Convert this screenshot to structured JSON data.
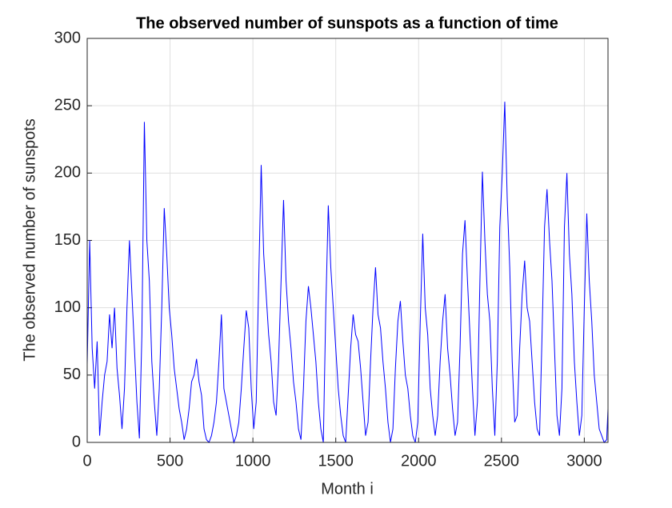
{
  "chart_data": {
    "type": "line",
    "title": "The observed number of sunspots as a function of time",
    "x_label": "Month i",
    "y_label": "The observed number of sunspots",
    "x": [
      0,
      15,
      30,
      45,
      60,
      75,
      90,
      105,
      120,
      135,
      150,
      165,
      180,
      195,
      210,
      225,
      240,
      255,
      270,
      285,
      300,
      315,
      330,
      345,
      360,
      375,
      390,
      405,
      420,
      435,
      450,
      465,
      480,
      495,
      510,
      525,
      540,
      555,
      570,
      585,
      600,
      615,
      630,
      645,
      660,
      675,
      690,
      705,
      720,
      735,
      750,
      765,
      780,
      795,
      810,
      825,
      840,
      855,
      870,
      885,
      900,
      915,
      930,
      945,
      960,
      975,
      990,
      1005,
      1020,
      1035,
      1050,
      1065,
      1080,
      1095,
      1110,
      1125,
      1140,
      1155,
      1170,
      1185,
      1200,
      1215,
      1230,
      1245,
      1260,
      1275,
      1290,
      1305,
      1320,
      1335,
      1350,
      1365,
      1380,
      1395,
      1410,
      1425,
      1440,
      1455,
      1470,
      1485,
      1500,
      1515,
      1530,
      1545,
      1560,
      1575,
      1590,
      1605,
      1620,
      1635,
      1650,
      1665,
      1680,
      1695,
      1710,
      1725,
      1740,
      1755,
      1770,
      1785,
      1800,
      1815,
      1830,
      1845,
      1860,
      1875,
      1890,
      1905,
      1920,
      1935,
      1950,
      1965,
      1980,
      1995,
      2010,
      2025,
      2040,
      2055,
      2070,
      2085,
      2100,
      2115,
      2130,
      2145,
      2160,
      2175,
      2190,
      2205,
      2220,
      2235,
      2250,
      2265,
      2280,
      2295,
      2310,
      2325,
      2340,
      2355,
      2370,
      2385,
      2400,
      2415,
      2430,
      2445,
      2460,
      2475,
      2490,
      2505,
      2520,
      2535,
      2550,
      2565,
      2580,
      2595,
      2610,
      2625,
      2640,
      2655,
      2670,
      2685,
      2700,
      2715,
      2730,
      2745,
      2760,
      2775,
      2790,
      2805,
      2820,
      2835,
      2850,
      2865,
      2880,
      2895,
      2910,
      2925,
      2940,
      2955,
      2970,
      2985,
      3000,
      3015,
      3030,
      3045,
      3060,
      3075,
      3090,
      3105,
      3120,
      3135,
      3143
    ],
    "series": [
      {
        "name": "Sunspots",
        "color": "#0000ff",
        "values": [
          58,
          150,
          70,
          40,
          75,
          5,
          30,
          50,
          60,
          95,
          70,
          100,
          55,
          35,
          10,
          40,
          100,
          150,
          110,
          70,
          30,
          3,
          80,
          238,
          150,
          120,
          60,
          30,
          5,
          40,
          100,
          174,
          140,
          100,
          80,
          55,
          40,
          25,
          15,
          2,
          10,
          25,
          45,
          50,
          62,
          45,
          35,
          10,
          2,
          0,
          5,
          15,
          30,
          60,
          95,
          40,
          30,
          20,
          10,
          0,
          5,
          15,
          40,
          70,
          98,
          85,
          40,
          10,
          30,
          120,
          206,
          140,
          110,
          80,
          60,
          30,
          20,
          60,
          120,
          180,
          120,
          90,
          70,
          45,
          30,
          10,
          2,
          40,
          90,
          116,
          100,
          80,
          60,
          30,
          10,
          0,
          100,
          176,
          130,
          100,
          70,
          40,
          20,
          5,
          0,
          35,
          70,
          95,
          80,
          75,
          55,
          30,
          5,
          15,
          60,
          100,
          130,
          95,
          85,
          60,
          40,
          15,
          0,
          10,
          55,
          90,
          105,
          75,
          50,
          40,
          20,
          5,
          0,
          15,
          90,
          155,
          100,
          80,
          40,
          20,
          5,
          20,
          60,
          90,
          110,
          70,
          50,
          25,
          5,
          15,
          70,
          140,
          165,
          120,
          80,
          40,
          5,
          30,
          120,
          201,
          150,
          110,
          90,
          40,
          5,
          60,
          160,
          200,
          253,
          180,
          130,
          60,
          15,
          20,
          70,
          110,
          135,
          100,
          90,
          60,
          30,
          10,
          5,
          80,
          160,
          188,
          150,
          120,
          70,
          20,
          5,
          40,
          160,
          200,
          140,
          110,
          60,
          30,
          5,
          20,
          100,
          170,
          120,
          90,
          50,
          30,
          10,
          5,
          0,
          2,
          25
        ]
      }
    ],
    "xlim": [
      0,
      3143
    ],
    "ylim": [
      0,
      300
    ],
    "xticks": [
      0,
      500,
      1000,
      1500,
      2000,
      2500,
      3000
    ],
    "yticks": [
      0,
      50,
      100,
      150,
      200,
      250,
      300
    ],
    "grid": true
  }
}
